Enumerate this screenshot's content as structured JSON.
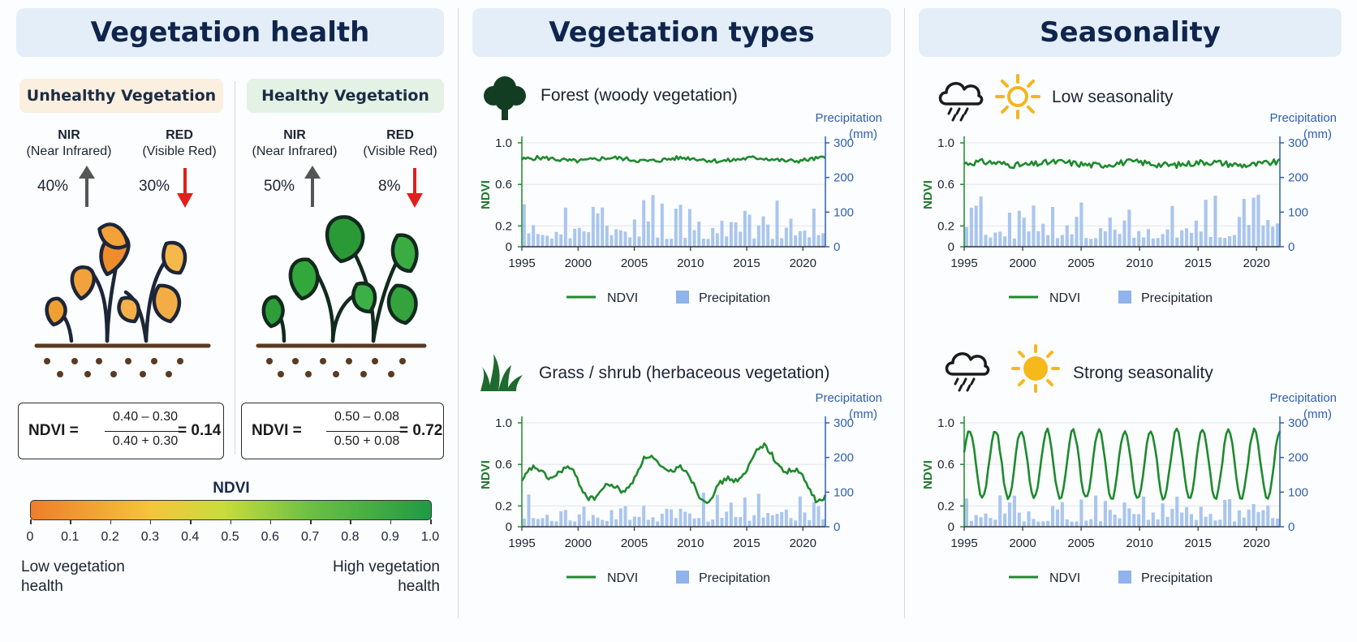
{
  "headers": {
    "health": "Vegetation health",
    "types": "Vegetation types",
    "seasonality": "Seasonality"
  },
  "health": {
    "unhealthy": {
      "title": "Unhealthy Vegetation",
      "nir_label": "NIR",
      "nir_sub": "(Near Infrared)",
      "nir_pct": "40%",
      "red_label": "RED",
      "red_sub": "(Visible Red)",
      "red_pct": "30%",
      "formula": {
        "lhs": "NDVI =",
        "num": "0.40 – 0.30",
        "den": "0.40 + 0.30",
        "result": "= 0.14"
      }
    },
    "healthy": {
      "title": "Healthy Vegetation",
      "nir_label": "NIR",
      "nir_sub": "(Near Infrared)",
      "nir_pct": "50%",
      "red_label": "RED",
      "red_sub": "(Visible Red)",
      "red_pct": "8%",
      "formula": {
        "lhs": "NDVI =",
        "num": "0.50 – 0.08",
        "den": "0.50 + 0.08",
        "result": "= 0.72"
      }
    },
    "scale": {
      "title": "NDVI",
      "ticks": [
        "0",
        "0.1",
        "0.2",
        "0.3",
        "0.4",
        "0.5",
        "0.6",
        "0.7",
        "0.8",
        "0.9",
        "1.0"
      ],
      "low_label_1": "Low vegetation",
      "low_label_2": "health",
      "high_label_1": "High vegetation",
      "high_label_2": "health"
    }
  },
  "colors": {
    "ndvi_line": "#1e8a2e",
    "precip_bar": "#8fb3ea",
    "leaf_unhealthy": "#f0a030",
    "leaf_healthy": "#33a23a",
    "arrow_up": "#555555",
    "arrow_down": "#e0201c"
  },
  "icons": {
    "forest": "tree-icon",
    "grass": "grass-icon",
    "cloud": "rain-cloud-icon",
    "sun": "sun-icon"
  },
  "chart_data": [
    {
      "type": "line",
      "title": "Forest (woody vegetation)",
      "x_ticks": [
        "1995",
        "2000",
        "2005",
        "2010",
        "2015",
        "2020"
      ],
      "xlim": [
        1995,
        2022
      ],
      "ylabel": "NDVI",
      "ylim": [
        0,
        1.0
      ],
      "y_ticks": [
        "1.0",
        "0.6",
        "0.2",
        "0"
      ],
      "y2label_1": "Precipitation",
      "y2label_2": "(mm)",
      "y2lim": [
        0,
        300
      ],
      "y2_ticks": [
        "300",
        "200",
        "100",
        "0"
      ],
      "legend": [
        "NDVI",
        "Precipitation"
      ],
      "series": [
        {
          "name": "NDVI",
          "pattern": "stable",
          "base": 0.84,
          "amp": 0.02
        },
        {
          "name": "Precipitation",
          "pattern": "monthly-bars",
          "max": 150
        }
      ]
    },
    {
      "type": "line",
      "title": "Grass / shrub (herbaceous vegetation)",
      "x_ticks": [
        "1995",
        "2000",
        "2005",
        "2010",
        "2015",
        "2020"
      ],
      "xlim": [
        1995,
        2022
      ],
      "ylabel": "NDVI",
      "ylim": [
        0,
        1.0
      ],
      "y_ticks": [
        "1.0",
        "0.6",
        "0.2",
        "0"
      ],
      "y2label_1": "Precipitation",
      "y2label_2": "(mm)",
      "y2lim": [
        0,
        300
      ],
      "y2_ticks": [
        "300",
        "200",
        "100",
        "0"
      ],
      "legend": [
        "NDVI",
        "Precipitation"
      ],
      "series": [
        {
          "name": "NDVI",
          "pattern": "variable",
          "base": 0.42,
          "amp": 0.18
        },
        {
          "name": "Precipitation",
          "pattern": "monthly-bars",
          "max": 100
        }
      ]
    },
    {
      "type": "line",
      "title": "Low seasonality",
      "x_ticks": [
        "1995",
        "2000",
        "2005",
        "2010",
        "2015",
        "2020"
      ],
      "xlim": [
        1995,
        2022
      ],
      "ylabel": "NDVI",
      "ylim": [
        0,
        1.0
      ],
      "y_ticks": [
        "1.0",
        "0.6",
        "0.2",
        "0"
      ],
      "y2label_1": "Precipitation",
      "y2label_2": "(mm)",
      "y2lim": [
        0,
        300
      ],
      "y2_ticks": [
        "300",
        "200",
        "100",
        "0"
      ],
      "legend": [
        "NDVI",
        "Precipitation"
      ],
      "series": [
        {
          "name": "NDVI",
          "pattern": "stable",
          "base": 0.8,
          "amp": 0.03
        },
        {
          "name": "Precipitation",
          "pattern": "monthly-bars",
          "max": 150
        }
      ]
    },
    {
      "type": "line",
      "title": "Strong seasonality",
      "x_ticks": [
        "1995",
        "2000",
        "2005",
        "2010",
        "2015",
        "2020"
      ],
      "xlim": [
        1995,
        2022
      ],
      "ylabel": "NDVI",
      "ylim": [
        0,
        1.0
      ],
      "y_ticks": [
        "1.0",
        "0.6",
        "0.2",
        "0"
      ],
      "y2label_1": "Precipitation",
      "y2label_2": "(mm)",
      "y2lim": [
        0,
        300
      ],
      "y2_ticks": [
        "300",
        "200",
        "100",
        "0"
      ],
      "legend": [
        "NDVI",
        "Precipitation"
      ],
      "series": [
        {
          "name": "NDVI",
          "pattern": "seasonal",
          "base": 0.6,
          "amp": 0.33
        },
        {
          "name": "Precipitation",
          "pattern": "monthly-bars",
          "max": 100
        }
      ]
    }
  ]
}
